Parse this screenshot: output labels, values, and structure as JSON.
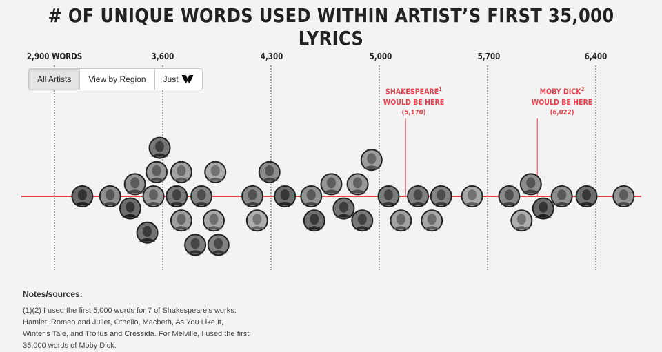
{
  "chart_data": {
    "type": "scatter",
    "title": "# OF UNIQUE WORDS USED WITHIN ARTIST’S FIRST 35,000 LYRICS",
    "x_ticks": [
      {
        "value": 2900,
        "label": "2,900 WORDS"
      },
      {
        "value": 3600,
        "label": "3,600"
      },
      {
        "value": 4300,
        "label": "4,300"
      },
      {
        "value": 5000,
        "label": "5,000"
      },
      {
        "value": 5700,
        "label": "5,700"
      },
      {
        "value": 6400,
        "label": "6,400"
      }
    ],
    "xlim": [
      2900,
      6400
    ],
    "annotations": [
      {
        "line1": "SHAKESPEARE",
        "sup": "1",
        "line2": "WOULD BE HERE",
        "line3": "(5,170)",
        "value": 5170
      },
      {
        "line1": "MOBY DICK",
        "sup": "2",
        "line2": "WOULD BE HERE",
        "line3": "(6,022)",
        "value": 6022
      }
    ],
    "artists": [
      {
        "x": 3080
      },
      {
        "x": 3260
      },
      {
        "x": 3390
      },
      {
        "x": 3420
      },
      {
        "x": 3500
      },
      {
        "x": 3560
      },
      {
        "x": 3580
      },
      {
        "x": 3540
      },
      {
        "x": 3690
      },
      {
        "x": 3720
      },
      {
        "x": 3810
      },
      {
        "x": 3720
      },
      {
        "x": 3960
      },
      {
        "x": 3930
      },
      {
        "x": 3850
      },
      {
        "x": 3940
      },
      {
        "x": 4180
      },
      {
        "x": 4210
      },
      {
        "x": 4290
      },
      {
        "x": 4390
      },
      {
        "x": 4560
      },
      {
        "x": 4580
      },
      {
        "x": 4690
      },
      {
        "x": 4770
      },
      {
        "x": 4860
      },
      {
        "x": 4890
      },
      {
        "x": 4950
      },
      {
        "x": 5060
      },
      {
        "x": 5140
      },
      {
        "x": 5250
      },
      {
        "x": 5340
      },
      {
        "x": 5400
      },
      {
        "x": 5600
      },
      {
        "x": 5840
      },
      {
        "x": 5920
      },
      {
        "x": 5980
      },
      {
        "x": 6060
      },
      {
        "x": 6180
      },
      {
        "x": 6340
      },
      {
        "x": 6580
      }
    ]
  },
  "view_toggle": {
    "all_label": "All Artists",
    "region_label": "View by Region",
    "just_label": "Just"
  },
  "notes": {
    "title": "Notes/sources:",
    "text": "(1)(2) I used the first 5,000 words for 7 of Shakespeare’s works: Hamlet, Romeo and Juliet, Othello, Macbeth, As You Like It, Winter’s Tale, and Troilus and Cressida. For Melville, I used the first 35,000 words of Moby Dick."
  },
  "colors": {
    "accent": "#e8434f",
    "axis_line": "#e8434f",
    "grid": "#555555",
    "bubble_border": "#222222",
    "bubble_fill": "#8a8a8a"
  }
}
